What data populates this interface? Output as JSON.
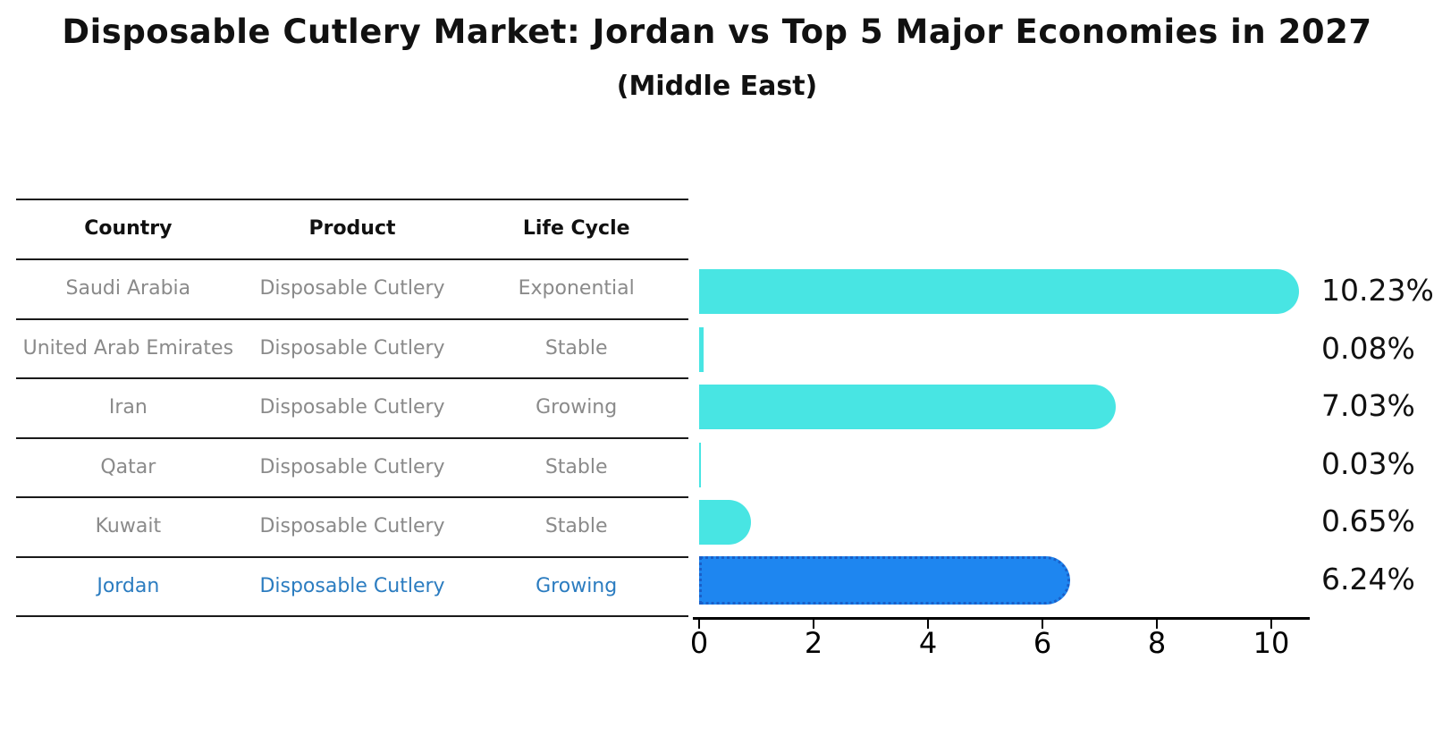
{
  "title": "Disposable Cutlery Market: Jordan vs Top 5 Major Economies in 2027",
  "subtitle": "(Middle East)",
  "table": {
    "headers": [
      "Country",
      "Product",
      "Life Cycle"
    ],
    "rows": [
      [
        "Saudi Arabia",
        "Disposable Cutlery",
        "Exponential"
      ],
      [
        "United Arab Emirates",
        "Disposable Cutlery",
        "Stable"
      ],
      [
        "Iran",
        "Disposable Cutlery",
        "Growing"
      ],
      [
        "Qatar",
        "Disposable Cutlery",
        "Stable"
      ],
      [
        "Kuwait",
        "Disposable Cutlery",
        "Stable"
      ],
      [
        "Jordan",
        "Disposable Cutlery",
        "Growing"
      ]
    ],
    "highlight_row": 5
  },
  "chart_data": {
    "type": "bar",
    "orientation": "horizontal",
    "title": "Disposable Cutlery Market: Jordan vs Top 5 Major Economies in 2027",
    "subtitle": "(Middle East)",
    "categories": [
      "Saudi Arabia",
      "United Arab Emirates",
      "Iran",
      "Qatar",
      "Kuwait",
      "Jordan"
    ],
    "values": [
      10.23,
      0.08,
      7.03,
      0.03,
      0.65,
      6.24
    ],
    "value_labels": [
      "10.23%",
      "0.08%",
      "7.03%",
      "0.03%",
      "0.65%",
      "6.24%"
    ],
    "x_ticks": [
      0,
      2,
      4,
      6,
      8,
      10
    ],
    "xlim": [
      0,
      10.6
    ],
    "xlabel": "",
    "ylabel": "",
    "grid": false,
    "legend": false,
    "bar_color": "#48E5E3",
    "highlight_index": 5,
    "highlight_color": "#1E86F0",
    "highlight_border_color": "#1A5FC8",
    "highlight_border_style": "dotted"
  },
  "colors": {
    "background": "#FFFFFF",
    "title_text": "#111111",
    "table_line": "#1A1A1A",
    "table_header_text": "#111111",
    "table_body_text": "#8A8A8A",
    "highlight_text": "#2B7CC0",
    "axis": "#000000",
    "value_label_text": "#111111"
  }
}
